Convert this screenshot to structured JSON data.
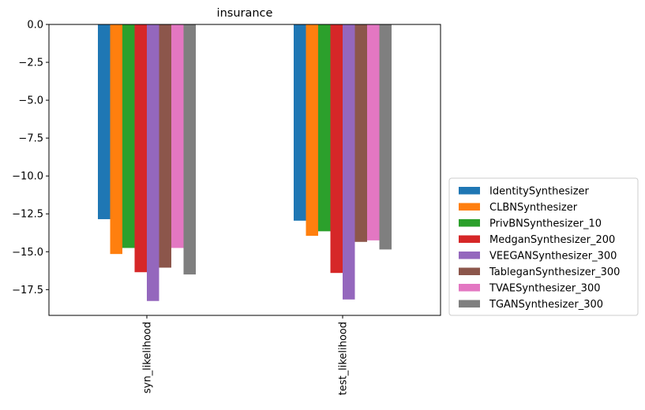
{
  "chart_data": {
    "type": "bar",
    "title": "insurance",
    "xlabel": "",
    "ylabel": "",
    "categories": [
      "syn_likelihood",
      "test_likelihood"
    ],
    "ylim": [
      -19.2,
      0.0
    ],
    "yticks": [
      0.0,
      -2.5,
      -5.0,
      -7.5,
      -10.0,
      -12.5,
      -15.0,
      -17.5
    ],
    "ytick_labels": [
      "0.0",
      "−2.5",
      "−5.0",
      "−7.5",
      "−10.0",
      "−12.5",
      "−15.0",
      "−17.5"
    ],
    "grid": false,
    "legend_position": "right",
    "series": [
      {
        "name": "IdentitySynthesizer",
        "color": "#1f77b4",
        "values": [
          -12.85,
          -12.95
        ]
      },
      {
        "name": "CLBNSynthesizer",
        "color": "#ff7f0e",
        "values": [
          -15.15,
          -13.95
        ]
      },
      {
        "name": "PrivBNSynthesizer_10",
        "color": "#2ca02c",
        "values": [
          -14.75,
          -13.65
        ]
      },
      {
        "name": "MedganSynthesizer_200",
        "color": "#d62728",
        "values": [
          -16.35,
          -16.4
        ]
      },
      {
        "name": "VEEGANSynthesizer_300",
        "color": "#9467bd",
        "values": [
          -18.25,
          -18.15
        ]
      },
      {
        "name": "TableganSynthesizer_300",
        "color": "#8c564b",
        "values": [
          -16.05,
          -14.35
        ]
      },
      {
        "name": "TVAESynthesizer_300",
        "color": "#e377c2",
        "values": [
          -14.75,
          -14.25
        ]
      },
      {
        "name": "TGANSynthesizer_300",
        "color": "#7f7f7f",
        "values": [
          -16.5,
          -14.85
        ]
      }
    ]
  }
}
